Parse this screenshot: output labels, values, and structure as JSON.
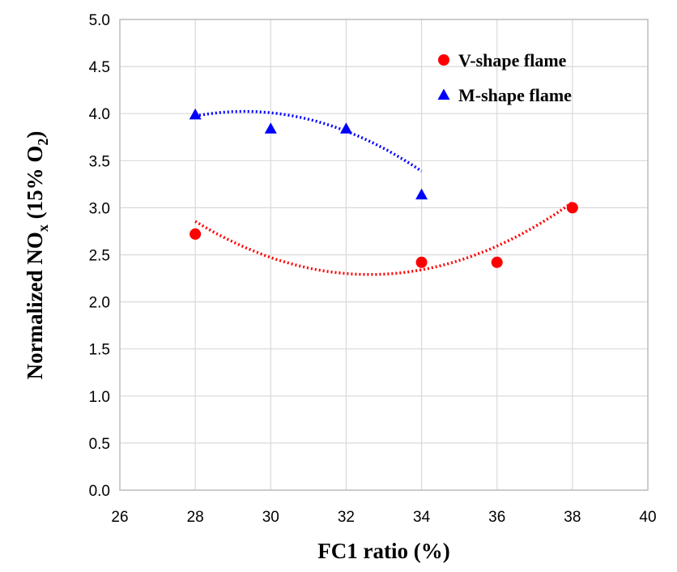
{
  "chart_data": {
    "type": "scatter",
    "xlabel": "FC1 ratio (%)",
    "ylabel": {
      "main": "Normalized NO",
      "sub": "x",
      "tail": " (15% O",
      "sub2": "2",
      "end": ")"
    },
    "xlim": [
      26,
      40
    ],
    "ylim": [
      0.0,
      5.0
    ],
    "x_ticks": [
      "26",
      "28",
      "30",
      "32",
      "34",
      "36",
      "38",
      "40"
    ],
    "y_ticks": [
      "0.0",
      "0.5",
      "1.0",
      "1.5",
      "2.0",
      "2.5",
      "3.0",
      "3.5",
      "4.0",
      "4.5",
      "5.0"
    ],
    "grid": "on",
    "legend": "top-right",
    "series": [
      {
        "name": "V-shape flame",
        "marker": "circle",
        "color": "#ff0000",
        "x": [
          28,
          34,
          36,
          38
        ],
        "y": [
          2.72,
          2.42,
          2.42,
          3.0
        ],
        "trendline": {
          "type": "polynomial-2",
          "coef": [
            0.02646,
            -1.7262,
            30.444
          ],
          "range": [
            28,
            38
          ]
        }
      },
      {
        "name": "M-shape flame",
        "marker": "triangle",
        "color": "#0000ff",
        "x": [
          28,
          30,
          32,
          34
        ],
        "y": [
          3.99,
          3.84,
          3.84,
          3.14
        ],
        "trendline": {
          "type": "polynomial-2",
          "coef": [
            -0.02875,
            1.6848,
            -20.66
          ],
          "range": [
            28,
            34
          ]
        }
      }
    ]
  }
}
